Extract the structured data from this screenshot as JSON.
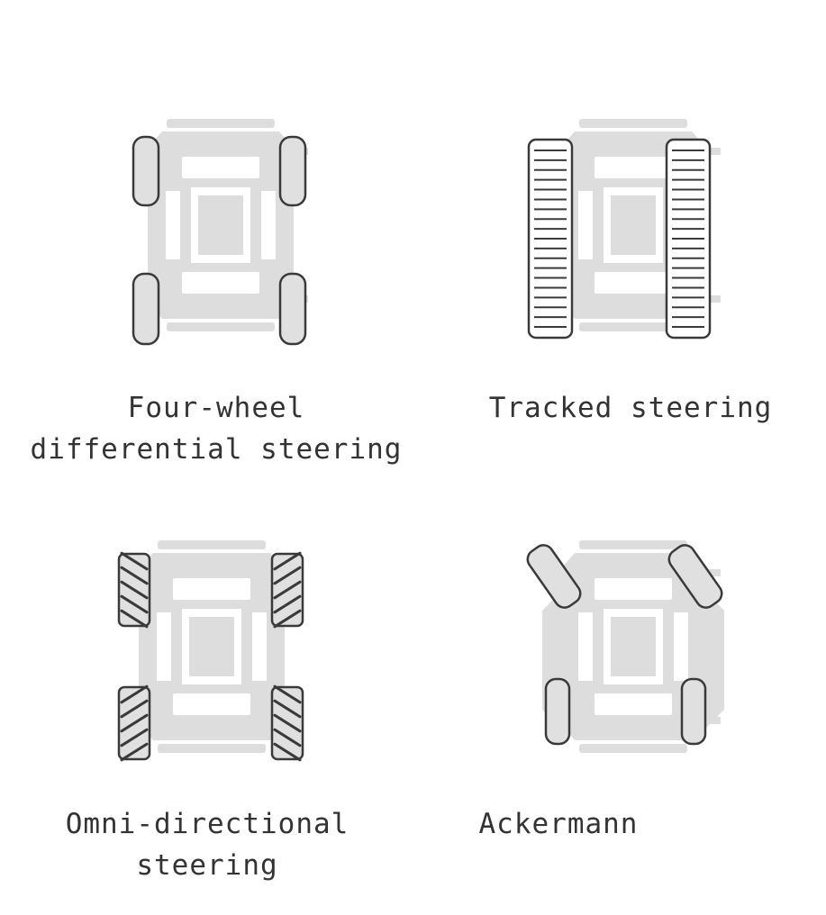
{
  "colors": {
    "chassis": "#dddddd",
    "chassis_inner": "#ffffff",
    "wheel_fill": "#e0e0e0",
    "wheel_stroke": "#3a3a3a",
    "track_fill": "#ffffff",
    "text": "#333333"
  },
  "panels": [
    {
      "id": "four-wheel",
      "drive": "wheels",
      "caption_lines": [
        "Four-wheel",
        "differential steering"
      ]
    },
    {
      "id": "tracked",
      "drive": "tracks",
      "caption_lines": [
        "Tracked steering"
      ]
    },
    {
      "id": "omni",
      "drive": "mecanum",
      "caption_lines": [
        "Omni-directional",
        "steering"
      ]
    },
    {
      "id": "ackermann",
      "drive": "ackermann",
      "caption_lines": [
        "Ackermann"
      ]
    }
  ]
}
